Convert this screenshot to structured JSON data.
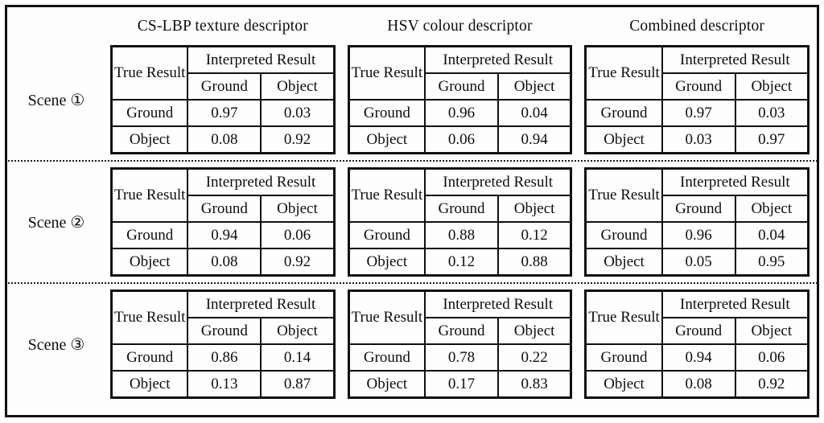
{
  "figure": {
    "descriptors": [
      "CS-LBP texture descriptor",
      "HSV colour descriptor",
      "Combined descriptor"
    ],
    "matrix_labels": {
      "true_result": "True Result",
      "interpreted_result": "Interpreted Result",
      "ground": "Ground",
      "object": "Object"
    },
    "scenes": [
      {
        "label": "Scene ①",
        "matrices": [
          {
            "descriptor": "CS-LBP texture descriptor",
            "values": [
              [
                "0.97",
                "0.03"
              ],
              [
                "0.08",
                "0.92"
              ]
            ]
          },
          {
            "descriptor": "HSV colour descriptor",
            "values": [
              [
                "0.96",
                "0.04"
              ],
              [
                "0.06",
                "0.94"
              ]
            ]
          },
          {
            "descriptor": "Combined descriptor",
            "values": [
              [
                "0.97",
                "0.03"
              ],
              [
                "0.03",
                "0.97"
              ]
            ]
          }
        ]
      },
      {
        "label": "Scene ②",
        "matrices": [
          {
            "descriptor": "CS-LBP texture descriptor",
            "values": [
              [
                "0.94",
                "0.06"
              ],
              [
                "0.08",
                "0.92"
              ]
            ]
          },
          {
            "descriptor": "HSV colour descriptor",
            "values": [
              [
                "0.88",
                "0.12"
              ],
              [
                "0.12",
                "0.88"
              ]
            ]
          },
          {
            "descriptor": "Combined descriptor",
            "values": [
              [
                "0.96",
                "0.04"
              ],
              [
                "0.05",
                "0.95"
              ]
            ]
          }
        ]
      },
      {
        "label": "Scene ③",
        "matrices": [
          {
            "descriptor": "CS-LBP texture descriptor",
            "values": [
              [
                "0.86",
                "0.14"
              ],
              [
                "0.13",
                "0.87"
              ]
            ]
          },
          {
            "descriptor": "HSV colour descriptor",
            "values": [
              [
                "0.78",
                "0.22"
              ],
              [
                "0.17",
                "0.83"
              ]
            ]
          },
          {
            "descriptor": "Combined descriptor",
            "values": [
              [
                "0.94",
                "0.06"
              ],
              [
                "0.08",
                "0.92"
              ]
            ]
          }
        ]
      }
    ]
  }
}
